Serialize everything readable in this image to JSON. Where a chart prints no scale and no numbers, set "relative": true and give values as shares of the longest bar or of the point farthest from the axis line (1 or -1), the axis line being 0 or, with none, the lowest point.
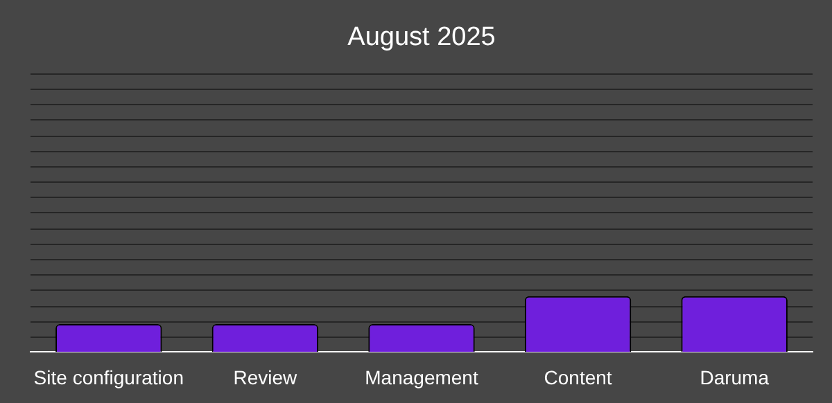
{
  "chart_data": {
    "type": "bar",
    "title": "August 2025",
    "categories": [
      "Site configuration",
      "Review",
      "Management",
      "Content",
      "Daruma"
    ],
    "values": [
      0.5,
      0.5,
      0.5,
      1,
      1
    ],
    "color": "#6f1fdc",
    "relative": true,
    "legend": false
  }
}
